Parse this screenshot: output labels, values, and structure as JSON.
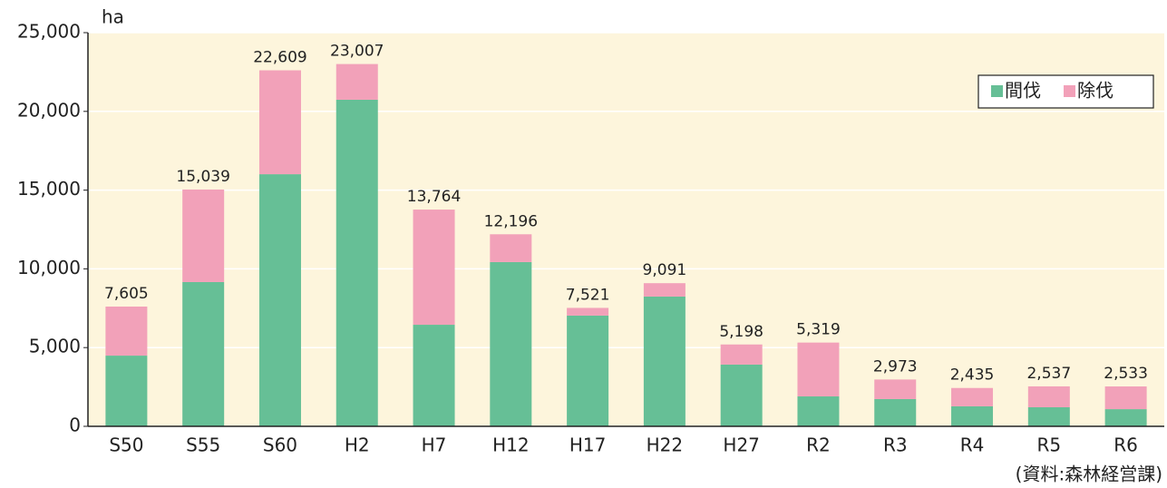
{
  "chart_data": {
    "type": "stacked_bar",
    "y_label": "ha",
    "source": "(資料:森林経営課)",
    "categories": [
      "S50",
      "S55",
      "S60",
      "H2",
      "H7",
      "H12",
      "H17",
      "H22",
      "H27",
      "R2",
      "R3",
      "R4",
      "R5",
      "R6"
    ],
    "series": [
      {
        "name": "間伐",
        "color": "#66bf96",
        "values": [
          4490,
          9160,
          16010,
          20740,
          6450,
          10430,
          7030,
          8240,
          3920,
          1900,
          1730,
          1270,
          1210,
          1090
        ]
      },
      {
        "name": "除伐",
        "color": "#f2a1b9",
        "values": [
          3115,
          5879,
          6599,
          2267,
          7314,
          1766,
          491,
          851,
          1278,
          3419,
          1243,
          1165,
          1327,
          1443
        ]
      }
    ],
    "totals": [
      7605,
      15039,
      22609,
      23007,
      13764,
      12196,
      7521,
      9091,
      5198,
      5319,
      2973,
      2435,
      2537,
      2533
    ],
    "total_labels": [
      "7,605",
      "15,039",
      "22,609",
      "23,007",
      "13,764",
      "12,196",
      "7,521",
      "9,091",
      "5,198",
      "5,319",
      "2,973",
      "2,435",
      "2,537",
      "2,533"
    ],
    "ylim": [
      0,
      25000
    ],
    "yticks": [
      0,
      {
        "value": 5000,
        "label": "5,000"
      },
      {
        "value": 10000,
        "label": "10,000"
      },
      {
        "value": 15000,
        "label": "15,000"
      },
      {
        "value": 20000,
        "label": "20,000"
      },
      {
        "value": 25000,
        "label": "25,000"
      }
    ],
    "grid": true,
    "legend": "top-right"
  }
}
